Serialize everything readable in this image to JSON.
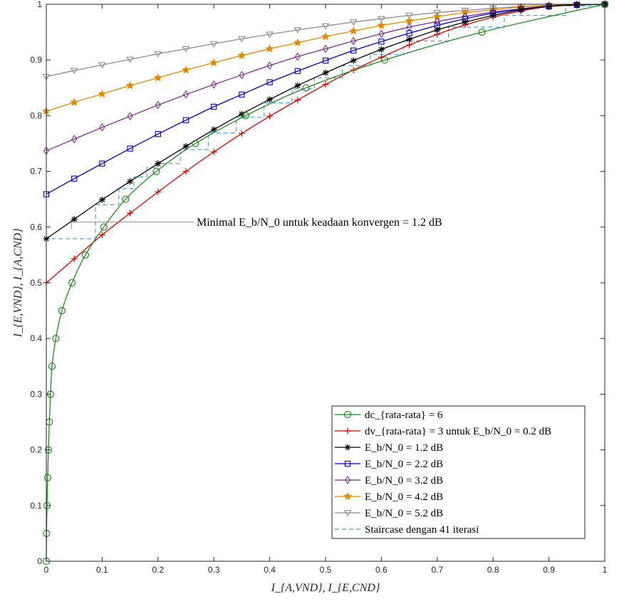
{
  "chart_data": {
    "type": "line",
    "title": "",
    "xlabel": "I_{A,VND}, I_{E,CND}",
    "ylabel": "I_{E,VND}, I_{A,CND}",
    "xlim": [
      0,
      1
    ],
    "ylim": [
      0,
      1
    ],
    "x_ticks": [
      "0",
      "0.1",
      "0.2",
      "0.3",
      "0.4",
      "0.5",
      "0.6",
      "0.7",
      "0.8",
      "0.9",
      "1"
    ],
    "y_ticks": [
      "0",
      "0.1",
      "0.2",
      "0.3",
      "0.4",
      "0.5",
      "0.6",
      "0.7",
      "0.8",
      "0.9",
      "1"
    ],
    "grid": false,
    "legend_position": "bottom-right",
    "annotation": {
      "text": "Minimal E_b/N_0 untuk keadaan konvergen = 1.2 dB",
      "x": 0.045,
      "y": 0.609
    },
    "series": [
      {
        "name": "dc_{rata-rata} = 6",
        "color": "#1e8c1e",
        "marker": "circle",
        "points": [
          [
            0,
            0
          ],
          [
            0.0004,
            0.05
          ],
          [
            0.0012,
            0.1
          ],
          [
            0.0024,
            0.15
          ],
          [
            0.0038,
            0.2
          ],
          [
            0.0055,
            0.25
          ],
          [
            0.0076,
            0.3
          ],
          [
            0.0102,
            0.35
          ],
          [
            0.017,
            0.4
          ],
          [
            0.028,
            0.45
          ],
          [
            0.046,
            0.5
          ],
          [
            0.07,
            0.55
          ],
          [
            0.103,
            0.6
          ],
          [
            0.142,
            0.65
          ],
          [
            0.197,
            0.7
          ],
          [
            0.267,
            0.75
          ],
          [
            0.357,
            0.8
          ],
          [
            0.465,
            0.85
          ],
          [
            0.606,
            0.9
          ],
          [
            0.78,
            0.95
          ],
          [
            1.0,
            1.0
          ]
        ]
      },
      {
        "name": "dv_{rata-rata} = 3 untuk E_b/N_0 = 0.2 dB",
        "color": "#e00000",
        "marker": "plus",
        "points": [
          [
            0,
            0.5
          ],
          [
            0.05,
            0.543
          ],
          [
            0.1,
            0.586
          ],
          [
            0.15,
            0.625
          ],
          [
            0.2,
            0.663
          ],
          [
            0.25,
            0.7
          ],
          [
            0.3,
            0.735
          ],
          [
            0.35,
            0.768
          ],
          [
            0.4,
            0.799
          ],
          [
            0.45,
            0.828
          ],
          [
            0.5,
            0.856
          ],
          [
            0.55,
            0.882
          ],
          [
            0.6,
            0.905
          ],
          [
            0.65,
            0.927
          ],
          [
            0.7,
            0.946
          ],
          [
            0.75,
            0.963
          ],
          [
            0.8,
            0.977
          ],
          [
            0.85,
            0.988
          ],
          [
            0.9,
            0.996
          ],
          [
            0.95,
            0.999
          ],
          [
            1.0,
            1.0
          ]
        ]
      },
      {
        "name": "E_b/N_0 = 1.2 dB",
        "color": "#000000",
        "marker": "asterisk",
        "points": [
          [
            0,
            0.579
          ],
          [
            0.05,
            0.614
          ],
          [
            0.1,
            0.649
          ],
          [
            0.15,
            0.682
          ],
          [
            0.2,
            0.714
          ],
          [
            0.25,
            0.745
          ],
          [
            0.3,
            0.775
          ],
          [
            0.35,
            0.803
          ],
          [
            0.4,
            0.829
          ],
          [
            0.45,
            0.854
          ],
          [
            0.5,
            0.877
          ],
          [
            0.55,
            0.899
          ],
          [
            0.6,
            0.919
          ],
          [
            0.65,
            0.937
          ],
          [
            0.7,
            0.954
          ],
          [
            0.75,
            0.968
          ],
          [
            0.8,
            0.98
          ],
          [
            0.85,
            0.99
          ],
          [
            0.9,
            0.996
          ],
          [
            0.95,
            0.999
          ],
          [
            1.0,
            1.0
          ]
        ]
      },
      {
        "name": "E_b/N_0 = 2.2 dB",
        "color": "#0000cc",
        "marker": "square",
        "points": [
          [
            0,
            0.659
          ],
          [
            0.05,
            0.687
          ],
          [
            0.1,
            0.714
          ],
          [
            0.15,
            0.741
          ],
          [
            0.2,
            0.767
          ],
          [
            0.25,
            0.792
          ],
          [
            0.3,
            0.816
          ],
          [
            0.35,
            0.838
          ],
          [
            0.4,
            0.86
          ],
          [
            0.45,
            0.88
          ],
          [
            0.5,
            0.899
          ],
          [
            0.55,
            0.917
          ],
          [
            0.6,
            0.933
          ],
          [
            0.65,
            0.948
          ],
          [
            0.7,
            0.962
          ],
          [
            0.75,
            0.974
          ],
          [
            0.8,
            0.984
          ],
          [
            0.85,
            0.991
          ],
          [
            0.9,
            0.996
          ],
          [
            0.95,
            0.999
          ],
          [
            1.0,
            1.0
          ]
        ]
      },
      {
        "name": "E_b/N_0 = 3.2 dB",
        "color": "#7e2f8e",
        "marker": "diamond",
        "points": [
          [
            0,
            0.737
          ],
          [
            0.05,
            0.758
          ],
          [
            0.1,
            0.779
          ],
          [
            0.15,
            0.799
          ],
          [
            0.2,
            0.819
          ],
          [
            0.25,
            0.838
          ],
          [
            0.3,
            0.856
          ],
          [
            0.35,
            0.873
          ],
          [
            0.4,
            0.89
          ],
          [
            0.45,
            0.906
          ],
          [
            0.5,
            0.92
          ],
          [
            0.55,
            0.934
          ],
          [
            0.6,
            0.947
          ],
          [
            0.65,
            0.959
          ],
          [
            0.7,
            0.969
          ],
          [
            0.75,
            0.978
          ],
          [
            0.8,
            0.986
          ],
          [
            0.85,
            0.992
          ],
          [
            0.9,
            0.997
          ],
          [
            0.95,
            0.999
          ],
          [
            1.0,
            1.0
          ]
        ]
      },
      {
        "name": "E_b/N_0 = 4.2 dB",
        "color": "#e08a00",
        "marker": "star",
        "points": [
          [
            0,
            0.808
          ],
          [
            0.05,
            0.824
          ],
          [
            0.1,
            0.839
          ],
          [
            0.15,
            0.854
          ],
          [
            0.2,
            0.868
          ],
          [
            0.25,
            0.882
          ],
          [
            0.3,
            0.895
          ],
          [
            0.35,
            0.908
          ],
          [
            0.4,
            0.92
          ],
          [
            0.45,
            0.931
          ],
          [
            0.5,
            0.942
          ],
          [
            0.55,
            0.952
          ],
          [
            0.6,
            0.962
          ],
          [
            0.65,
            0.97
          ],
          [
            0.7,
            0.978
          ],
          [
            0.75,
            0.985
          ],
          [
            0.8,
            0.99
          ],
          [
            0.85,
            0.995
          ],
          [
            0.9,
            0.998
          ],
          [
            0.95,
            0.999
          ],
          [
            1.0,
            1.0
          ]
        ]
      },
      {
        "name": "E_b/N_0 = 5.2 dB",
        "color": "#8c8c8c",
        "marker": "triangle-down",
        "points": [
          [
            0,
            0.87
          ],
          [
            0.05,
            0.881
          ],
          [
            0.1,
            0.891
          ],
          [
            0.15,
            0.901
          ],
          [
            0.2,
            0.911
          ],
          [
            0.25,
            0.92
          ],
          [
            0.3,
            0.929
          ],
          [
            0.35,
            0.938
          ],
          [
            0.4,
            0.946
          ],
          [
            0.45,
            0.954
          ],
          [
            0.5,
            0.961
          ],
          [
            0.55,
            0.968
          ],
          [
            0.6,
            0.974
          ],
          [
            0.65,
            0.98
          ],
          [
            0.7,
            0.985
          ],
          [
            0.75,
            0.989
          ],
          [
            0.8,
            0.993
          ],
          [
            0.85,
            0.996
          ],
          [
            0.9,
            0.998
          ],
          [
            0.95,
            0.999
          ],
          [
            1.0,
            1.0
          ]
        ]
      },
      {
        "name": "Staircase dengan 41 iterasi",
        "color": "#3a9ad9",
        "marker": "none",
        "dashed": true,
        "points": [
          [
            0,
            0
          ],
          [
            0,
            0.579
          ],
          [
            0.088,
            0.579
          ],
          [
            0.088,
            0.64
          ],
          [
            0.13,
            0.64
          ],
          [
            0.13,
            0.669
          ],
          [
            0.157,
            0.669
          ],
          [
            0.157,
            0.69
          ],
          [
            0.18,
            0.69
          ],
          [
            0.18,
            0.707
          ],
          [
            0.2,
            0.707
          ],
          [
            0.2,
            0.714
          ],
          [
            0.24,
            0.714
          ],
          [
            0.24,
            0.739
          ],
          [
            0.29,
            0.739
          ],
          [
            0.29,
            0.769
          ],
          [
            0.34,
            0.769
          ],
          [
            0.34,
            0.797
          ],
          [
            0.39,
            0.797
          ],
          [
            0.39,
            0.823
          ],
          [
            0.44,
            0.823
          ],
          [
            0.44,
            0.848
          ],
          [
            0.48,
            0.848
          ],
          [
            0.48,
            0.868
          ],
          [
            0.53,
            0.868
          ],
          [
            0.53,
            0.89
          ],
          [
            0.58,
            0.89
          ],
          [
            0.58,
            0.91
          ],
          [
            0.64,
            0.91
          ],
          [
            0.64,
            0.934
          ],
          [
            0.72,
            0.934
          ],
          [
            0.72,
            0.959
          ],
          [
            0.82,
            0.959
          ],
          [
            0.82,
            0.98
          ],
          [
            0.93,
            0.98
          ],
          [
            0.93,
            0.997
          ],
          [
            1.0,
            0.997
          ],
          [
            1.0,
            1.0
          ]
        ]
      }
    ]
  }
}
